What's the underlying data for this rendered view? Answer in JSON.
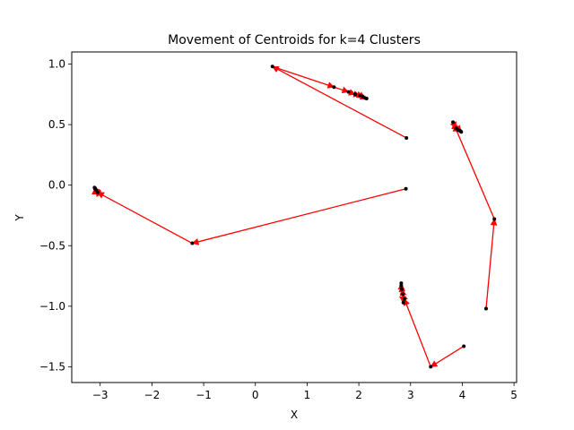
{
  "chart_data": {
    "type": "line",
    "title": "Movement of Centroids for k=4 Clusters",
    "xlabel": "X",
    "ylabel": "Y",
    "xlim": [
      -3.55,
      5.05
    ],
    "ylim": [
      -1.63,
      1.1
    ],
    "xticks": [
      -3,
      -2,
      -1,
      0,
      1,
      2,
      3,
      4,
      5
    ],
    "xtick_labels": [
      "−3",
      "−2",
      "−1",
      "0",
      "1",
      "2",
      "3",
      "4",
      "5"
    ],
    "yticks": [
      -1.5,
      -1.0,
      -0.5,
      0.0,
      0.5,
      1.0
    ],
    "ytick_labels": [
      "−1.5",
      "−1.0",
      "−0.5",
      "0.0",
      "0.5",
      "1.0"
    ],
    "grid": false,
    "point_color": "#000000",
    "arrow_color": "#ff0000",
    "series": [
      {
        "points": [
          {
            "x": 2.92,
            "y": 0.39
          },
          {
            "x": 0.33,
            "y": 0.98
          },
          {
            "x": 1.52,
            "y": 0.81
          },
          {
            "x": 1.8,
            "y": 0.77
          },
          {
            "x": 1.93,
            "y": 0.75
          },
          {
            "x": 2.02,
            "y": 0.74
          },
          {
            "x": 2.08,
            "y": 0.73
          },
          {
            "x": 2.12,
            "y": 0.72
          },
          {
            "x": 2.15,
            "y": 0.715
          }
        ]
      },
      {
        "points": [
          {
            "x": 4.46,
            "y": -1.02
          },
          {
            "x": 4.62,
            "y": -0.28
          },
          {
            "x": 3.82,
            "y": 0.52
          },
          {
            "x": 3.88,
            "y": 0.47
          },
          {
            "x": 3.92,
            "y": 0.455
          },
          {
            "x": 3.95,
            "y": 0.45
          },
          {
            "x": 3.97,
            "y": 0.445
          },
          {
            "x": 3.98,
            "y": 0.44
          }
        ]
      },
      {
        "points": [
          {
            "x": 2.91,
            "y": -0.03
          },
          {
            "x": -1.22,
            "y": -0.48
          },
          {
            "x": -3.05,
            "y": -0.06
          },
          {
            "x": -3.08,
            "y": -0.04
          },
          {
            "x": -3.1,
            "y": -0.03
          },
          {
            "x": -3.1,
            "y": -0.025
          },
          {
            "x": -3.11,
            "y": -0.02
          }
        ]
      },
      {
        "points": [
          {
            "x": 4.03,
            "y": -1.33
          },
          {
            "x": 3.39,
            "y": -1.5
          },
          {
            "x": 2.88,
            "y": -0.94
          },
          {
            "x": 2.85,
            "y": -0.9
          },
          {
            "x": 2.83,
            "y": -0.86
          },
          {
            "x": 2.82,
            "y": -0.83
          },
          {
            "x": 2.82,
            "y": -0.81
          },
          {
            "x": 2.86,
            "y": -0.97
          }
        ]
      }
    ]
  }
}
